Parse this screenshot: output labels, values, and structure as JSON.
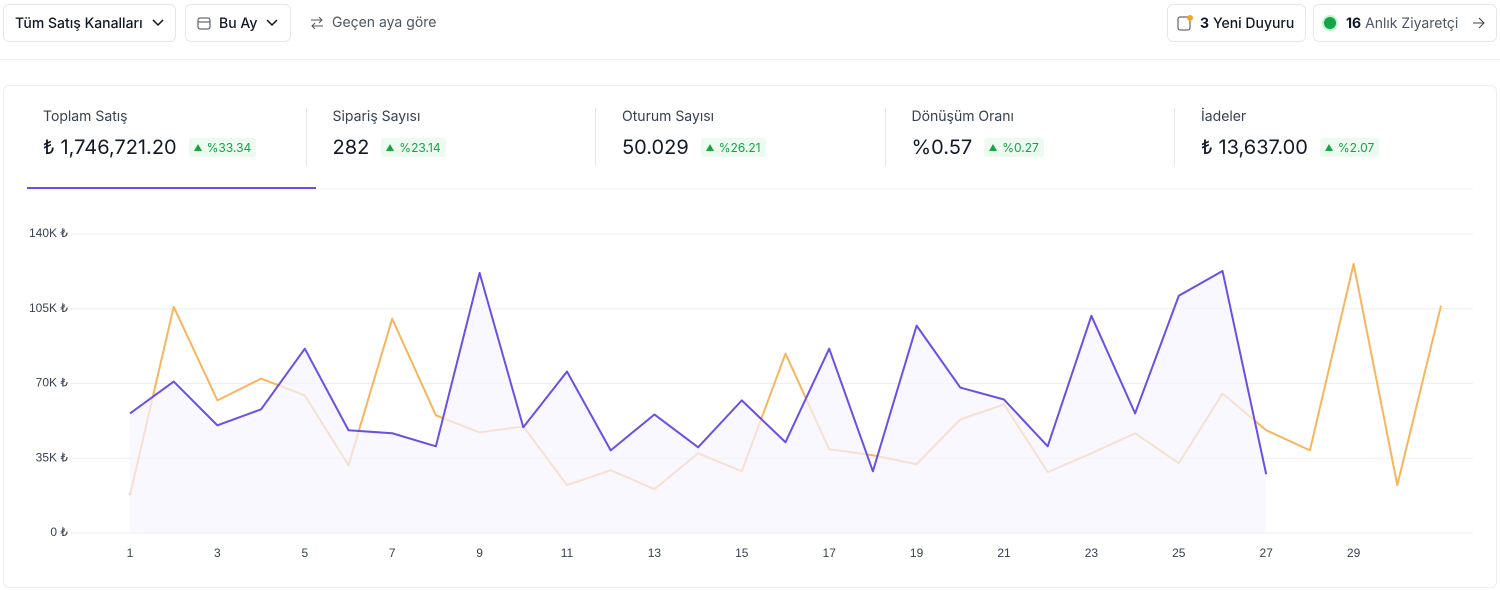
{
  "header": {
    "channel_filter": "Tüm Satış Kanalları",
    "period_filter": "Bu Ay",
    "comparison": "Geçen aya göre",
    "announcements": {
      "count": 3,
      "label": "Yeni Duyuru"
    },
    "visitors": {
      "count": 16,
      "label": "Anlık Ziyaretçi"
    }
  },
  "kpis": [
    {
      "label": "Toplam Satış",
      "value": "₺ 1,746,721.20",
      "change": "%33.34"
    },
    {
      "label": "Sipariş Sayısı",
      "value": "282",
      "change": "%23.14"
    },
    {
      "label": "Oturum Sayısı",
      "value": "50.029",
      "change": "%26.21"
    },
    {
      "label": "Dönüşüm Oranı",
      "value": "%0.57",
      "change": "%0.27"
    },
    {
      "label": "İadeler",
      "value": "₺ 13,637.00",
      "change": "%2.07"
    }
  ],
  "chart_data": {
    "type": "line",
    "x": [
      1,
      2,
      3,
      4,
      5,
      6,
      7,
      8,
      9,
      10,
      11,
      12,
      13,
      14,
      15,
      16,
      17,
      18,
      19,
      20,
      21,
      22,
      23,
      24,
      25,
      26,
      27,
      28,
      29,
      30,
      31
    ],
    "xlim": [
      1,
      31
    ],
    "xticks": [
      1,
      3,
      5,
      7,
      9,
      11,
      13,
      15,
      17,
      19,
      21,
      23,
      25,
      27,
      29
    ],
    "ylim": [
      0,
      140000
    ],
    "yticks": [
      {
        "value": 0,
        "label": "0 ₺"
      },
      {
        "value": 35000,
        "label": "35K ₺"
      },
      {
        "value": 70000,
        "label": "70K ₺"
      },
      {
        "value": 105000,
        "label": "105K ₺"
      },
      {
        "value": 140000,
        "label": "140K ₺"
      }
    ],
    "grid": true,
    "series": [
      {
        "color": "#f7b55e",
        "area": false,
        "values": [
          17700,
          105900,
          62100,
          72300,
          64400,
          31700,
          100300,
          55100,
          47100,
          49900,
          22400,
          29400,
          20500,
          37300,
          28900,
          84000,
          39200,
          36400,
          32200,
          53200,
          60200,
          28500,
          37300,
          46700,
          32700,
          65300,
          48100,
          38700,
          126000,
          22400,
          106400
        ]
      },
      {
        "color": "#6b4fe6",
        "area": true,
        "values": [
          56000,
          70900,
          50400,
          57900,
          86300,
          48100,
          46700,
          40600,
          121800,
          49500,
          75600,
          38700,
          55500,
          40100,
          62100,
          42500,
          86300,
          28900,
          97100,
          68100,
          62500,
          40600,
          101700,
          56000,
          111100,
          122700,
          27500,
          null,
          null,
          null,
          null
        ]
      }
    ]
  }
}
